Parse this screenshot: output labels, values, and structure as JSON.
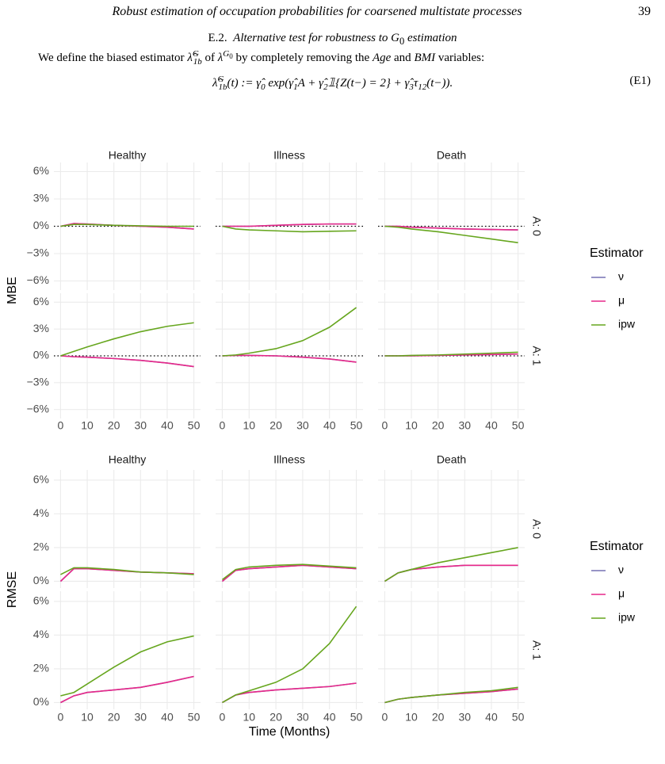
{
  "header": {
    "title": "Robust estimation of occupation probabilities for coarsened multistate processes",
    "page": "39"
  },
  "section": {
    "number": "E.2.",
    "title": "Alternative test for robustness to",
    "title_math": "G",
    "title_sub": "0",
    "title_end": "estimation"
  },
  "paragraph": [
    "We define the biased estimator",
    "λ̂",
    "G",
    "1b",
    "of",
    "λ",
    "G",
    "0",
    "by completely removing the",
    "Age",
    "and",
    "BMI",
    "variables:"
  ],
  "equation": {
    "parts": [
      "λ̂",
      "G",
      "1b",
      "(t) := γ̂",
      "0",
      "exp(γ̂",
      "1",
      "A + γ̂",
      "2",
      "𝟙{Z(t−) = 2} + γ̂",
      "3",
      "τ",
      "12",
      "(t−))."
    ],
    "label": "(E1)"
  },
  "chart_data": [
    {
      "type": "line",
      "ylabel": "MBE",
      "columns": [
        "Healthy",
        "Illness",
        "Death"
      ],
      "rows": [
        "A: 0",
        "A: 1"
      ],
      "legend_title": "Estimator",
      "x": [
        0,
        5,
        10,
        20,
        30,
        40,
        50
      ],
      "xlim": [
        -2.5,
        52.5
      ],
      "xticks": [
        0,
        10,
        20,
        30,
        40,
        50
      ],
      "ylim": [
        -7,
        7
      ],
      "yticks": [
        {
          "value": -6,
          "label": "−6%"
        },
        {
          "value": -3,
          "label": "−3%"
        },
        {
          "value": 0,
          "label": "0%"
        },
        {
          "value": 3,
          "label": "3%"
        },
        {
          "value": 6,
          "label": "6%"
        }
      ],
      "hline": 0,
      "grid": true,
      "series": [
        {
          "name": "ν",
          "color": "#7570b3",
          "values": [
            [
              0,
              0.3,
              0.25,
              0.1,
              0,
              -0.1,
              -0.3
            ],
            [
              0,
              0,
              0,
              0.1,
              0.2,
              0.25,
              0.25
            ],
            [
              0,
              0,
              -0.1,
              -0.2,
              -0.3,
              -0.35,
              -0.4
            ],
            [
              0,
              -0.1,
              -0.15,
              -0.3,
              -0.5,
              -0.8,
              -1.2
            ],
            [
              0,
              0.05,
              0.05,
              0,
              -0.15,
              -0.35,
              -0.7
            ],
            [
              0,
              0,
              0,
              0.05,
              0.1,
              0.15,
              0.2
            ]
          ]
        },
        {
          "name": "μ",
          "color": "#e7298a",
          "values": [
            [
              0,
              0.3,
              0.25,
              0.1,
              0,
              -0.1,
              -0.3
            ],
            [
              0,
              0,
              0,
              0.1,
              0.2,
              0.25,
              0.25
            ],
            [
              0,
              0,
              -0.1,
              -0.2,
              -0.3,
              -0.35,
              -0.4
            ],
            [
              0,
              -0.1,
              -0.15,
              -0.3,
              -0.5,
              -0.8,
              -1.2
            ],
            [
              0,
              0.05,
              0.05,
              0,
              -0.15,
              -0.35,
              -0.7
            ],
            [
              0,
              0,
              0,
              0.05,
              0.1,
              0.15,
              0.2
            ]
          ]
        },
        {
          "name": "ipw",
          "color": "#66a61e",
          "values": [
            [
              0,
              0.2,
              0.2,
              0.1,
              0.05,
              0,
              0
            ],
            [
              0,
              -0.3,
              -0.4,
              -0.5,
              -0.6,
              -0.55,
              -0.5
            ],
            [
              0,
              -0.1,
              -0.3,
              -0.6,
              -1.0,
              -1.4,
              -1.8
            ],
            [
              0,
              0.5,
              1.0,
              1.9,
              2.7,
              3.3,
              3.7
            ],
            [
              0,
              0.1,
              0.3,
              0.8,
              1.7,
              3.2,
              5.4
            ],
            [
              0,
              0,
              0.05,
              0.1,
              0.2,
              0.3,
              0.4
            ]
          ]
        }
      ]
    },
    {
      "type": "line",
      "ylabel": "RMSE",
      "xlabel": "Time (Months)",
      "columns": [
        "Healthy",
        "Illness",
        "Death"
      ],
      "rows": [
        "A: 0",
        "A: 1"
      ],
      "legend_title": "Estimator",
      "x": [
        0,
        5,
        10,
        20,
        30,
        40,
        50
      ],
      "xlim": [
        -2.5,
        52.5
      ],
      "xticks": [
        0,
        10,
        20,
        30,
        40,
        50
      ],
      "ylim": [
        -0.4,
        6.6
      ],
      "yticks": [
        {
          "value": 0,
          "label": "0%"
        },
        {
          "value": 2,
          "label": "2%"
        },
        {
          "value": 4,
          "label": "4%"
        },
        {
          "value": 6,
          "label": "6%"
        }
      ],
      "grid": true,
      "series": [
        {
          "name": "ν",
          "color": "#7570b3",
          "values": [
            [
              0,
              0.75,
              0.75,
              0.65,
              0.55,
              0.5,
              0.45
            ],
            [
              0,
              0.65,
              0.75,
              0.85,
              0.95,
              0.85,
              0.75
            ],
            [
              0,
              0.5,
              0.7,
              0.85,
              0.95,
              0.95,
              0.95
            ],
            [
              0,
              0.4,
              0.6,
              0.75,
              0.9,
              1.2,
              1.55
            ],
            [
              0,
              0.45,
              0.6,
              0.75,
              0.85,
              0.95,
              1.15
            ],
            [
              0,
              0.2,
              0.3,
              0.45,
              0.55,
              0.65,
              0.8
            ]
          ]
        },
        {
          "name": "μ",
          "color": "#e7298a",
          "values": [
            [
              0,
              0.75,
              0.75,
              0.65,
              0.55,
              0.5,
              0.45
            ],
            [
              0,
              0.65,
              0.75,
              0.85,
              0.95,
              0.85,
              0.75
            ],
            [
              0,
              0.5,
              0.7,
              0.85,
              0.95,
              0.95,
              0.95
            ],
            [
              0,
              0.4,
              0.6,
              0.75,
              0.9,
              1.2,
              1.55
            ],
            [
              0,
              0.45,
              0.6,
              0.75,
              0.85,
              0.95,
              1.15
            ],
            [
              0,
              0.2,
              0.3,
              0.45,
              0.55,
              0.65,
              0.8
            ]
          ]
        },
        {
          "name": "ipw",
          "color": "#66a61e",
          "values": [
            [
              0.4,
              0.8,
              0.8,
              0.7,
              0.55,
              0.5,
              0.4
            ],
            [
              0.1,
              0.7,
              0.85,
              0.95,
              1.0,
              0.9,
              0.8
            ],
            [
              0,
              0.5,
              0.7,
              1.1,
              1.4,
              1.7,
              2.0
            ],
            [
              0.4,
              0.6,
              1.1,
              2.1,
              3.0,
              3.6,
              3.95
            ],
            [
              0,
              0.45,
              0.7,
              1.2,
              2.0,
              3.5,
              5.7
            ],
            [
              0,
              0.2,
              0.3,
              0.45,
              0.6,
              0.7,
              0.9
            ]
          ]
        }
      ]
    }
  ]
}
